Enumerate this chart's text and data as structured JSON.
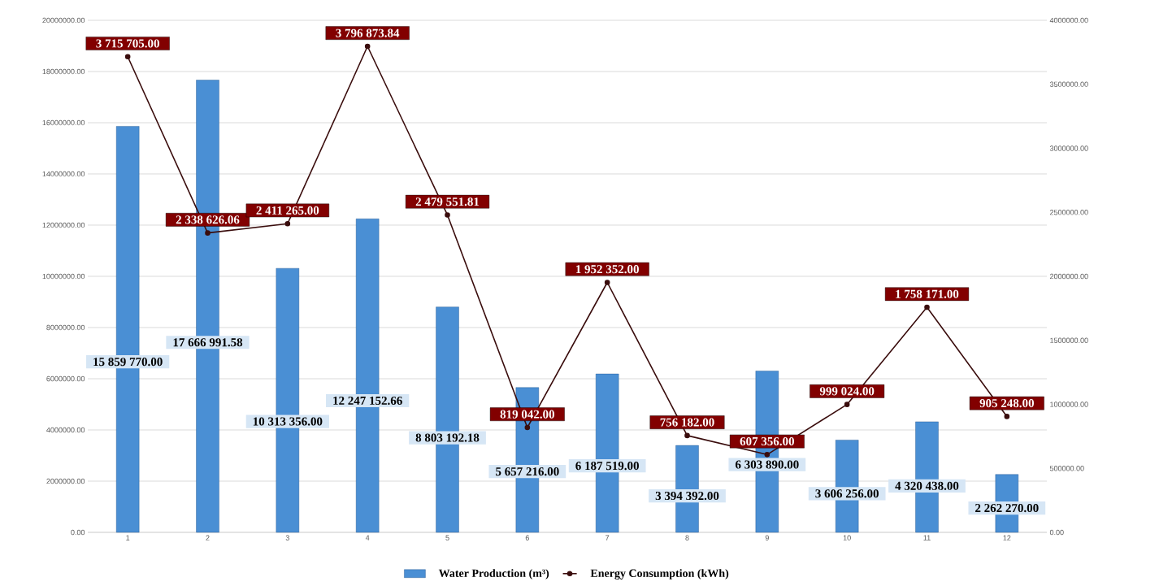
{
  "chart_data": {
    "type": "bar",
    "categories": [
      "1",
      "2",
      "3",
      "4",
      "5",
      "6",
      "7",
      "8",
      "9",
      "10",
      "11",
      "12"
    ],
    "series": [
      {
        "name": "Water Production (m³)",
        "color": "#4a8fd4",
        "values": [
          15859770.0,
          17666991.58,
          10313356.0,
          12247152.66,
          8803192.18,
          5657216.0,
          6187519.0,
          3394392.0,
          6303890.0,
          3606256.0,
          4320438.0,
          2262270.0
        ],
        "value_labels": [
          "15 859 770.00",
          "17 666 991.58",
          "10 313 356.00",
          "12 247 152.66",
          "8 803 192.18",
          "5 657 216.00",
          "6 187 519.00",
          "3 394 392.00",
          "6 303 890.00",
          "3 606 256.00",
          "4 320 438.00",
          "2 262 270.00"
        ]
      },
      {
        "name": "Energy Consumption (kWh)",
        "type": "line",
        "axis": "y2",
        "color": "#3a0d0d",
        "marker": "circle",
        "values": [
          3715705.0,
          2338626.06,
          2411265.0,
          3796873.84,
          2479551.81,
          819042.0,
          1952352.0,
          756182.0,
          607356.0,
          999024.0,
          1758171.0,
          905248.0
        ],
        "value_labels": [
          "3 715 705.00",
          "2 338 626.06",
          "2 411 265.00",
          "3 796 873.84",
          "2 479 551.81",
          "819 042.00",
          "1 952 352.00",
          "756 182.00",
          "607 356.00",
          "999 024.00",
          "1 758 171.00",
          "905 248.00"
        ]
      }
    ],
    "ylim": [
      0,
      20000000
    ],
    "yticks": [
      {
        "value": 0,
        "label": "0.00"
      },
      {
        "value": 2000000,
        "label": "2000000.00"
      },
      {
        "value": 4000000,
        "label": "4000000.00"
      },
      {
        "value": 6000000,
        "label": "6000000.00"
      },
      {
        "value": 8000000,
        "label": "8000000.00"
      },
      {
        "value": 10000000,
        "label": "10000000.00"
      },
      {
        "value": 12000000,
        "label": "12000000.00"
      },
      {
        "value": 14000000,
        "label": "14000000.00"
      },
      {
        "value": 16000000,
        "label": "16000000.00"
      },
      {
        "value": 18000000,
        "label": "18000000.00"
      },
      {
        "value": 20000000,
        "label": "20000000.00"
      }
    ],
    "y2lim": [
      0,
      4000000
    ],
    "y2ticks": [
      {
        "value": 0,
        "label": "0.00"
      },
      {
        "value": 500000,
        "label": "500000.00"
      },
      {
        "value": 1000000,
        "label": "1000000.00"
      },
      {
        "value": 1500000,
        "label": "1500000.00"
      },
      {
        "value": 2000000,
        "label": "2000000.00"
      },
      {
        "value": 2500000,
        "label": "2500000.00"
      },
      {
        "value": 3000000,
        "label": "3000000.00"
      },
      {
        "value": 3500000,
        "label": "3500000.00"
      },
      {
        "value": 4000000,
        "label": "4000000.00"
      }
    ],
    "grid": "y",
    "legend": "bottom"
  }
}
